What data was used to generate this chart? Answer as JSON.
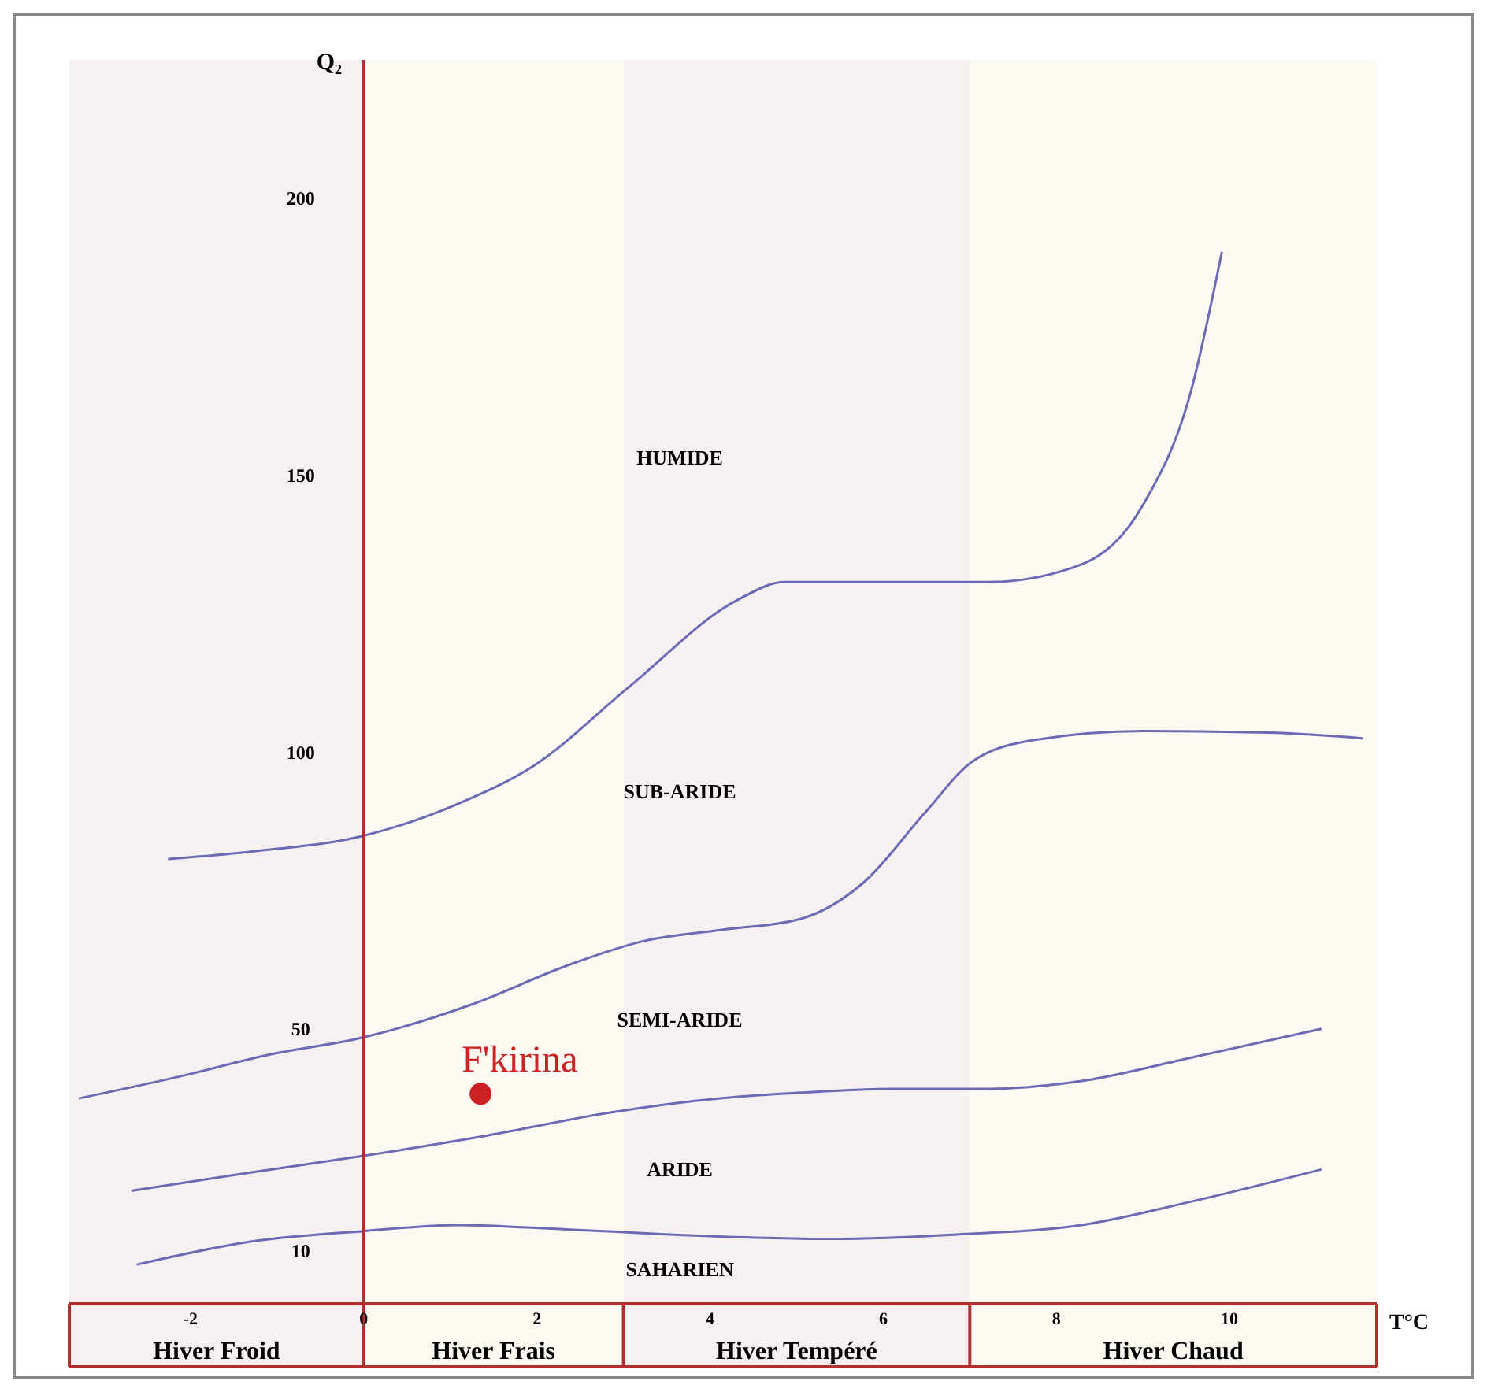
{
  "chart_data": {
    "type": "line",
    "ylabel": "Q₂",
    "xlabel": "T°C",
    "xlim": [
      -3.4,
      11.7
    ],
    "ylim": [
      -11,
      225
    ],
    "xticks": [
      -2,
      0,
      2,
      4,
      6,
      8,
      10
    ],
    "yticks": [
      10,
      50,
      100,
      150,
      200
    ],
    "grid": false,
    "line_style": "solid",
    "marker": "none",
    "series": [
      {
        "color": "#6b6bb5",
        "x": [
          -2.25,
          -1.26,
          0,
          1.08,
          1.98,
          3.06,
          4.32,
          4.86,
          6.13,
          7.21,
          8.29,
          9.01,
          9.55,
          9.91
        ],
        "values": [
          80.7,
          82.1,
          84.9,
          90.6,
          97.7,
          111.7,
          127.5,
          130.7,
          130.7,
          130.7,
          133.9,
          144.9,
          164.9,
          190.2
        ]
      },
      {
        "color": "#6b6bb5",
        "x": [
          -3.28,
          -2.16,
          -1.08,
          0,
          1.26,
          2.34,
          3.24,
          4.14,
          5.05,
          5.77,
          6.49,
          7.03,
          7.75,
          9.01,
          10.45,
          11.53
        ],
        "values": [
          37.5,
          41.3,
          45.4,
          48.5,
          54.5,
          61.4,
          65.9,
          67.9,
          69.9,
          76.4,
          89.2,
          98.3,
          102.2,
          103.8,
          103.5,
          102.5
        ]
      },
      {
        "color": "#6b6bb5",
        "x": [
          -2.67,
          -1.26,
          0,
          1.44,
          2.88,
          4.14,
          5.05,
          6.13,
          7.21,
          8.29,
          9.55,
          11.05
        ],
        "values": [
          20.8,
          24.2,
          27.1,
          30.8,
          35.0,
          37.5,
          38.5,
          39.2,
          39.2,
          40.6,
          44.8,
          50
        ]
      },
      {
        "color": "#6b6bb5",
        "x": [
          -2.61,
          -1.26,
          0,
          1.08,
          2.34,
          4.14,
          5.41,
          6.85,
          8.29,
          9.55,
          11.05
        ],
        "values": [
          7.5,
          11.7,
          13.5,
          14.6,
          13.8,
          12.5,
          12.1,
          12.9,
          14.6,
          18.8,
          24.6
        ]
      },
      {
        "type": "scatter",
        "name": "F'kirina",
        "color": "#cc2222",
        "marker": "circle",
        "x": [
          1.35
        ],
        "values": [
          38.3
        ]
      }
    ],
    "annotations": [
      "HUMIDE",
      "SUB-ARIDE",
      "SEMI-ARIDE",
      "ARIDE",
      "SAHARIEN"
    ],
    "bands": [
      {
        "axis": "x",
        "from": -3.4,
        "to": 0,
        "label": "Hiver Froid",
        "color": "#f7f0f0"
      },
      {
        "axis": "x",
        "from": 0,
        "to": 3,
        "label": "Hiver Frais",
        "color": "#fbf9f1"
      },
      {
        "axis": "x",
        "from": 3,
        "to": 7,
        "label": "Hiver Tempéré",
        "color": "#f7f0f0"
      },
      {
        "axis": "x",
        "from": 7,
        "to": 11.7,
        "label": "Hiver Chaud",
        "color": "#fbf9f1"
      }
    ]
  }
}
